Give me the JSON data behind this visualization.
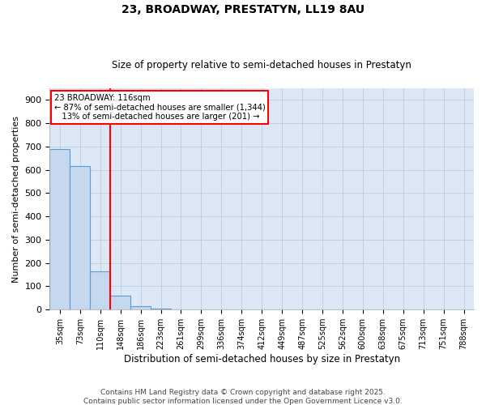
{
  "title": "23, BROADWAY, PRESTATYN, LL19 8AU",
  "subtitle": "Size of property relative to semi-detached houses in Prestatyn",
  "xlabel": "Distribution of semi-detached houses by size in Prestatyn",
  "ylabel": "Number of semi-detached properties",
  "categories": [
    "35sqm",
    "73sqm",
    "110sqm",
    "148sqm",
    "186sqm",
    "223sqm",
    "261sqm",
    "299sqm",
    "336sqm",
    "374sqm",
    "412sqm",
    "449sqm",
    "487sqm",
    "525sqm",
    "562sqm",
    "600sqm",
    "638sqm",
    "675sqm",
    "713sqm",
    "751sqm",
    "788sqm"
  ],
  "values": [
    690,
    615,
    165,
    60,
    15,
    5,
    0,
    0,
    0,
    0,
    0,
    0,
    0,
    0,
    0,
    0,
    0,
    0,
    0,
    0,
    0
  ],
  "bar_color": "#c5d8ed",
  "bar_edge_color": "#5b9bd5",
  "annotation_box_color": "#ff0000",
  "ylim": [
    0,
    950
  ],
  "yticks": [
    0,
    100,
    200,
    300,
    400,
    500,
    600,
    700,
    800,
    900
  ],
  "grid_color": "#c0d0e0",
  "bg_color": "#dce8f5",
  "footer": "Contains HM Land Registry data © Crown copyright and database right 2025.\nContains public sector information licensed under the Open Government Licence v3.0."
}
